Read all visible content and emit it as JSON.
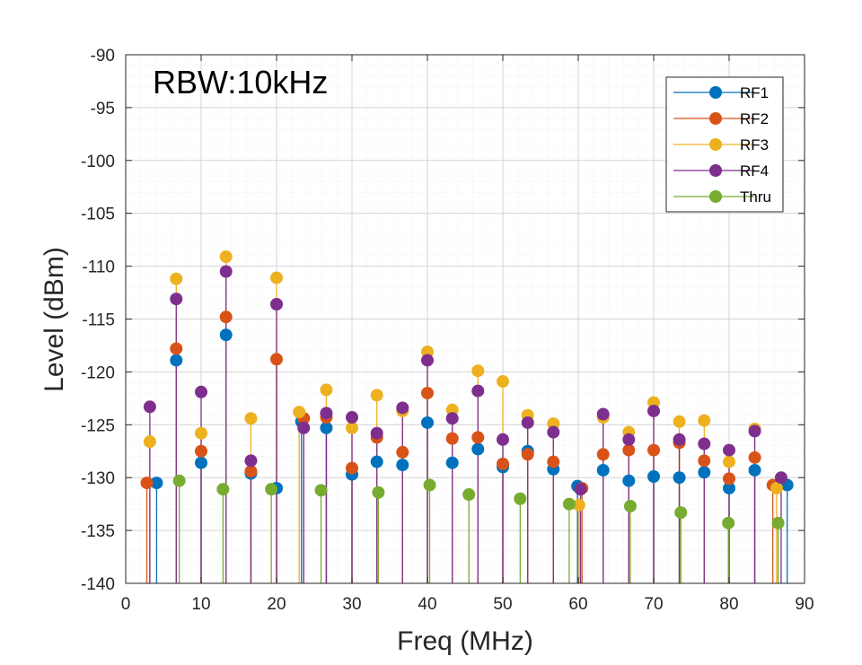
{
  "chart_data": {
    "type": "scatter",
    "style": "stem",
    "title": "",
    "annotation": "RBW:10kHz",
    "xlabel": "Freq (MHz)",
    "ylabel": "Level (dBm)",
    "xlim": [
      0,
      90
    ],
    "ylim": [
      -140,
      -90
    ],
    "x_ticks": [
      0,
      10,
      20,
      30,
      40,
      50,
      60,
      70,
      80,
      90
    ],
    "x_tick_labels": [
      "0",
      "10",
      "20",
      "30",
      "40",
      "50",
      "60",
      "70",
      "80",
      "90"
    ],
    "y_ticks": [
      -90,
      -95,
      -100,
      -105,
      -110,
      -115,
      -120,
      -125,
      -130,
      -135,
      -140
    ],
    "y_tick_labels": [
      "-90",
      "-95",
      "-100",
      "-105",
      "-110",
      "-115",
      "-120",
      "-125",
      "-130",
      "-135",
      "-140"
    ],
    "grid": true,
    "minor_grid": true,
    "legend_position": "top-right",
    "series": [
      {
        "name": "RF1",
        "color": "#0072BD",
        "points": [
          [
            4.1,
            -130.5
          ],
          [
            6.7,
            -118.9
          ],
          [
            10.0,
            -128.6
          ],
          [
            13.3,
            -116.5
          ],
          [
            16.6,
            -129.6
          ],
          [
            20.0,
            -131.0
          ],
          [
            23.3,
            -124.7
          ],
          [
            26.6,
            -125.3
          ],
          [
            30.0,
            -129.7
          ],
          [
            33.3,
            -128.5
          ],
          [
            36.7,
            -128.8
          ],
          [
            40.0,
            -124.8
          ],
          [
            43.3,
            -128.6
          ],
          [
            46.7,
            -127.3
          ],
          [
            50.0,
            -129.0
          ],
          [
            53.3,
            -127.5
          ],
          [
            56.7,
            -129.2
          ],
          [
            59.9,
            -130.8
          ],
          [
            63.3,
            -129.3
          ],
          [
            66.7,
            -130.3
          ],
          [
            70.0,
            -129.9
          ],
          [
            73.4,
            -130.0
          ],
          [
            76.7,
            -129.5
          ],
          [
            80.0,
            -131.0
          ],
          [
            83.4,
            -129.3
          ],
          [
            87.7,
            -130.7
          ]
        ]
      },
      {
        "name": "RF2",
        "color": "#D95319",
        "points": [
          [
            2.8,
            -130.5
          ],
          [
            6.7,
            -117.8
          ],
          [
            10.0,
            -127.5
          ],
          [
            13.3,
            -114.8
          ],
          [
            16.6,
            -129.4
          ],
          [
            20.0,
            -118.8
          ],
          [
            23.6,
            -124.4
          ],
          [
            26.6,
            -124.3
          ],
          [
            30.0,
            -129.1
          ],
          [
            33.3,
            -126.2
          ],
          [
            36.7,
            -127.6
          ],
          [
            40.0,
            -122.0
          ],
          [
            43.3,
            -126.3
          ],
          [
            46.7,
            -126.2
          ],
          [
            50.0,
            -128.7
          ],
          [
            53.3,
            -127.8
          ],
          [
            56.7,
            -128.5
          ],
          [
            60.5,
            -131.0
          ],
          [
            63.3,
            -127.8
          ],
          [
            66.7,
            -127.4
          ],
          [
            70.0,
            -127.4
          ],
          [
            73.4,
            -126.7
          ],
          [
            76.7,
            -128.4
          ],
          [
            80.0,
            -130.1
          ],
          [
            83.4,
            -128.1
          ],
          [
            85.8,
            -130.7
          ]
        ]
      },
      {
        "name": "RF3",
        "color": "#EDB120",
        "points": [
          [
            3.2,
            -126.6
          ],
          [
            6.7,
            -111.2
          ],
          [
            10.0,
            -125.8
          ],
          [
            13.3,
            -109.1
          ],
          [
            16.6,
            -124.4
          ],
          [
            20.0,
            -111.1
          ],
          [
            23.0,
            -123.8
          ],
          [
            26.6,
            -121.7
          ],
          [
            30.0,
            -125.3
          ],
          [
            33.3,
            -122.2
          ],
          [
            36.7,
            -123.7
          ],
          [
            40.0,
            -118.1
          ],
          [
            43.3,
            -123.6
          ],
          [
            46.7,
            -119.9
          ],
          [
            50.0,
            -120.9
          ],
          [
            53.3,
            -124.1
          ],
          [
            56.7,
            -124.9
          ],
          [
            60.1,
            -132.6
          ],
          [
            63.3,
            -124.3
          ],
          [
            66.7,
            -125.7
          ],
          [
            70.0,
            -122.9
          ],
          [
            73.4,
            -124.7
          ],
          [
            76.7,
            -124.6
          ],
          [
            80.0,
            -128.5
          ],
          [
            83.4,
            -125.4
          ],
          [
            86.3,
            -131.0
          ]
        ]
      },
      {
        "name": "RF4",
        "color": "#7E2F8E",
        "points": [
          [
            3.2,
            -123.3
          ],
          [
            6.7,
            -113.1
          ],
          [
            10.0,
            -121.9
          ],
          [
            13.3,
            -110.5
          ],
          [
            16.6,
            -128.4
          ],
          [
            20.0,
            -113.6
          ],
          [
            23.6,
            -125.3
          ],
          [
            26.6,
            -123.9
          ],
          [
            30.0,
            -124.3
          ],
          [
            33.3,
            -125.8
          ],
          [
            36.7,
            -123.4
          ],
          [
            40.0,
            -118.9
          ],
          [
            43.3,
            -124.4
          ],
          [
            46.7,
            -121.8
          ],
          [
            50.0,
            -126.4
          ],
          [
            53.3,
            -124.8
          ],
          [
            56.7,
            -125.7
          ],
          [
            60.3,
            -131.1
          ],
          [
            63.3,
            -124.0
          ],
          [
            66.7,
            -126.4
          ],
          [
            70.0,
            -123.7
          ],
          [
            73.4,
            -126.4
          ],
          [
            76.7,
            -126.8
          ],
          [
            80.0,
            -127.4
          ],
          [
            83.4,
            -125.6
          ],
          [
            86.9,
            -130.0
          ]
        ]
      },
      {
        "name": "Thru",
        "color": "#77AC30",
        "points": [
          [
            7.1,
            -130.3
          ],
          [
            12.9,
            -131.1
          ],
          [
            19.3,
            -131.1
          ],
          [
            25.9,
            -131.2
          ],
          [
            33.5,
            -131.4
          ],
          [
            40.3,
            -130.7
          ],
          [
            45.5,
            -131.6
          ],
          [
            52.3,
            -132.0
          ],
          [
            58.8,
            -132.5
          ],
          [
            66.9,
            -132.7
          ],
          [
            73.6,
            -133.3
          ],
          [
            79.9,
            -134.3
          ],
          [
            86.5,
            -134.3
          ]
        ]
      }
    ]
  }
}
